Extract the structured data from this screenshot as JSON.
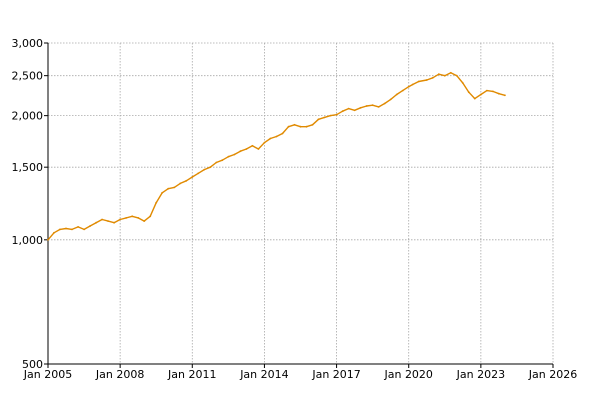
{
  "chart_data": {
    "type": "line",
    "title": "",
    "xlabel": "",
    "ylabel": "",
    "y_scale": "log",
    "ylim": [
      500,
      3000
    ],
    "xlim": [
      "2005-01",
      "2026-01"
    ],
    "grid": true,
    "y_ticks": [
      {
        "value": 500,
        "label": "500"
      },
      {
        "value": 1000,
        "label": "1,000"
      },
      {
        "value": 1500,
        "label": "1,500"
      },
      {
        "value": 2000,
        "label": "2,000"
      },
      {
        "value": 2500,
        "label": "2,500"
      },
      {
        "value": 3000,
        "label": "3,000"
      }
    ],
    "x_ticks": [
      {
        "value": "2005-01",
        "label": "Jan 2005"
      },
      {
        "value": "2008-01",
        "label": "Jan 2008"
      },
      {
        "value": "2011-01",
        "label": "Jan 2011"
      },
      {
        "value": "2014-01",
        "label": "Jan 2014"
      },
      {
        "value": "2017-01",
        "label": "Jan 2017"
      },
      {
        "value": "2020-01",
        "label": "Jan 2020"
      },
      {
        "value": "2023-01",
        "label": "Jan 2023"
      },
      {
        "value": "2026-01",
        "label": "Jan 2026"
      }
    ],
    "series": [
      {
        "color": "#e08a00",
        "x": [
          "2005-01",
          "2005-04",
          "2005-07",
          "2005-10",
          "2006-01",
          "2006-04",
          "2006-07",
          "2006-10",
          "2007-01",
          "2007-04",
          "2007-07",
          "2007-10",
          "2008-01",
          "2008-04",
          "2008-07",
          "2008-10",
          "2009-01",
          "2009-04",
          "2009-07",
          "2009-10",
          "2010-01",
          "2010-04",
          "2010-07",
          "2010-10",
          "2011-01",
          "2011-04",
          "2011-07",
          "2011-10",
          "2012-01",
          "2012-04",
          "2012-07",
          "2012-10",
          "2013-01",
          "2013-04",
          "2013-07",
          "2013-10",
          "2014-01",
          "2014-04",
          "2014-07",
          "2014-10",
          "2015-01",
          "2015-04",
          "2015-07",
          "2015-10",
          "2016-01",
          "2016-04",
          "2016-07",
          "2016-10",
          "2017-01",
          "2017-04",
          "2017-07",
          "2017-10",
          "2018-01",
          "2018-04",
          "2018-07",
          "2018-10",
          "2019-01",
          "2019-04",
          "2019-07",
          "2019-10",
          "2020-01",
          "2020-03",
          "2020-06",
          "2020-10",
          "2021-01",
          "2021-04",
          "2021-07",
          "2021-10",
          "2022-01",
          "2022-04",
          "2022-07",
          "2022-10",
          "2023-01",
          "2023-04",
          "2023-07",
          "2023-10",
          "2024-01"
        ],
        "y": [
          1000,
          1040,
          1060,
          1065,
          1060,
          1075,
          1060,
          1080,
          1100,
          1120,
          1110,
          1100,
          1120,
          1130,
          1140,
          1130,
          1110,
          1140,
          1230,
          1300,
          1330,
          1340,
          1370,
          1390,
          1420,
          1450,
          1480,
          1500,
          1540,
          1560,
          1590,
          1610,
          1640,
          1660,
          1690,
          1660,
          1720,
          1760,
          1780,
          1810,
          1880,
          1900,
          1880,
          1880,
          1900,
          1960,
          1980,
          2000,
          2010,
          2050,
          2080,
          2060,
          2090,
          2110,
          2120,
          2100,
          2140,
          2190,
          2250,
          2300,
          2350,
          2380,
          2420,
          2440,
          2470,
          2520,
          2500,
          2540,
          2500,
          2400,
          2280,
          2200,
          2250,
          2300,
          2290,
          2260,
          2240
        ]
      }
    ]
  }
}
